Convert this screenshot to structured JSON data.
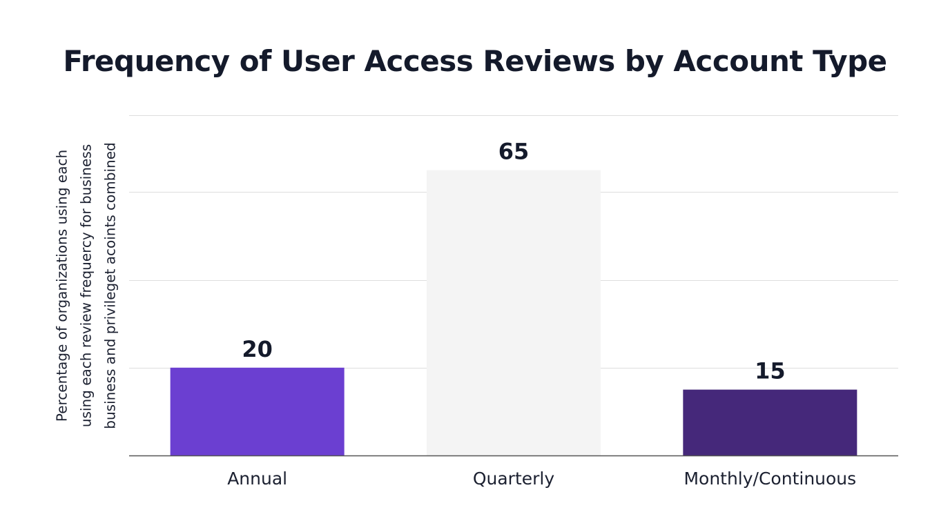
{
  "chart_data": {
    "type": "bar",
    "title": "Frequency of User Access Reviews by Account Type",
    "xlabel": "",
    "ylabel": "Percentage of organizations using each\nusing each review frequercy for business\nbusiness and privileget acoints combined",
    "categories": [
      "Annual",
      "Quarterly",
      "Monthly/Continuous"
    ],
    "values": [
      20,
      65,
      15
    ],
    "data_labels": [
      "20",
      "65",
      "15"
    ],
    "colors": [
      "#6b3fd1",
      "#f4f4f4",
      "#45287a"
    ],
    "ylim": [
      0,
      77.5
    ],
    "gridlines": [
      20,
      40,
      60,
      77.5
    ],
    "grid": true,
    "legend": "none",
    "axis_color": "#555555",
    "grid_color": "#dddddd"
  }
}
